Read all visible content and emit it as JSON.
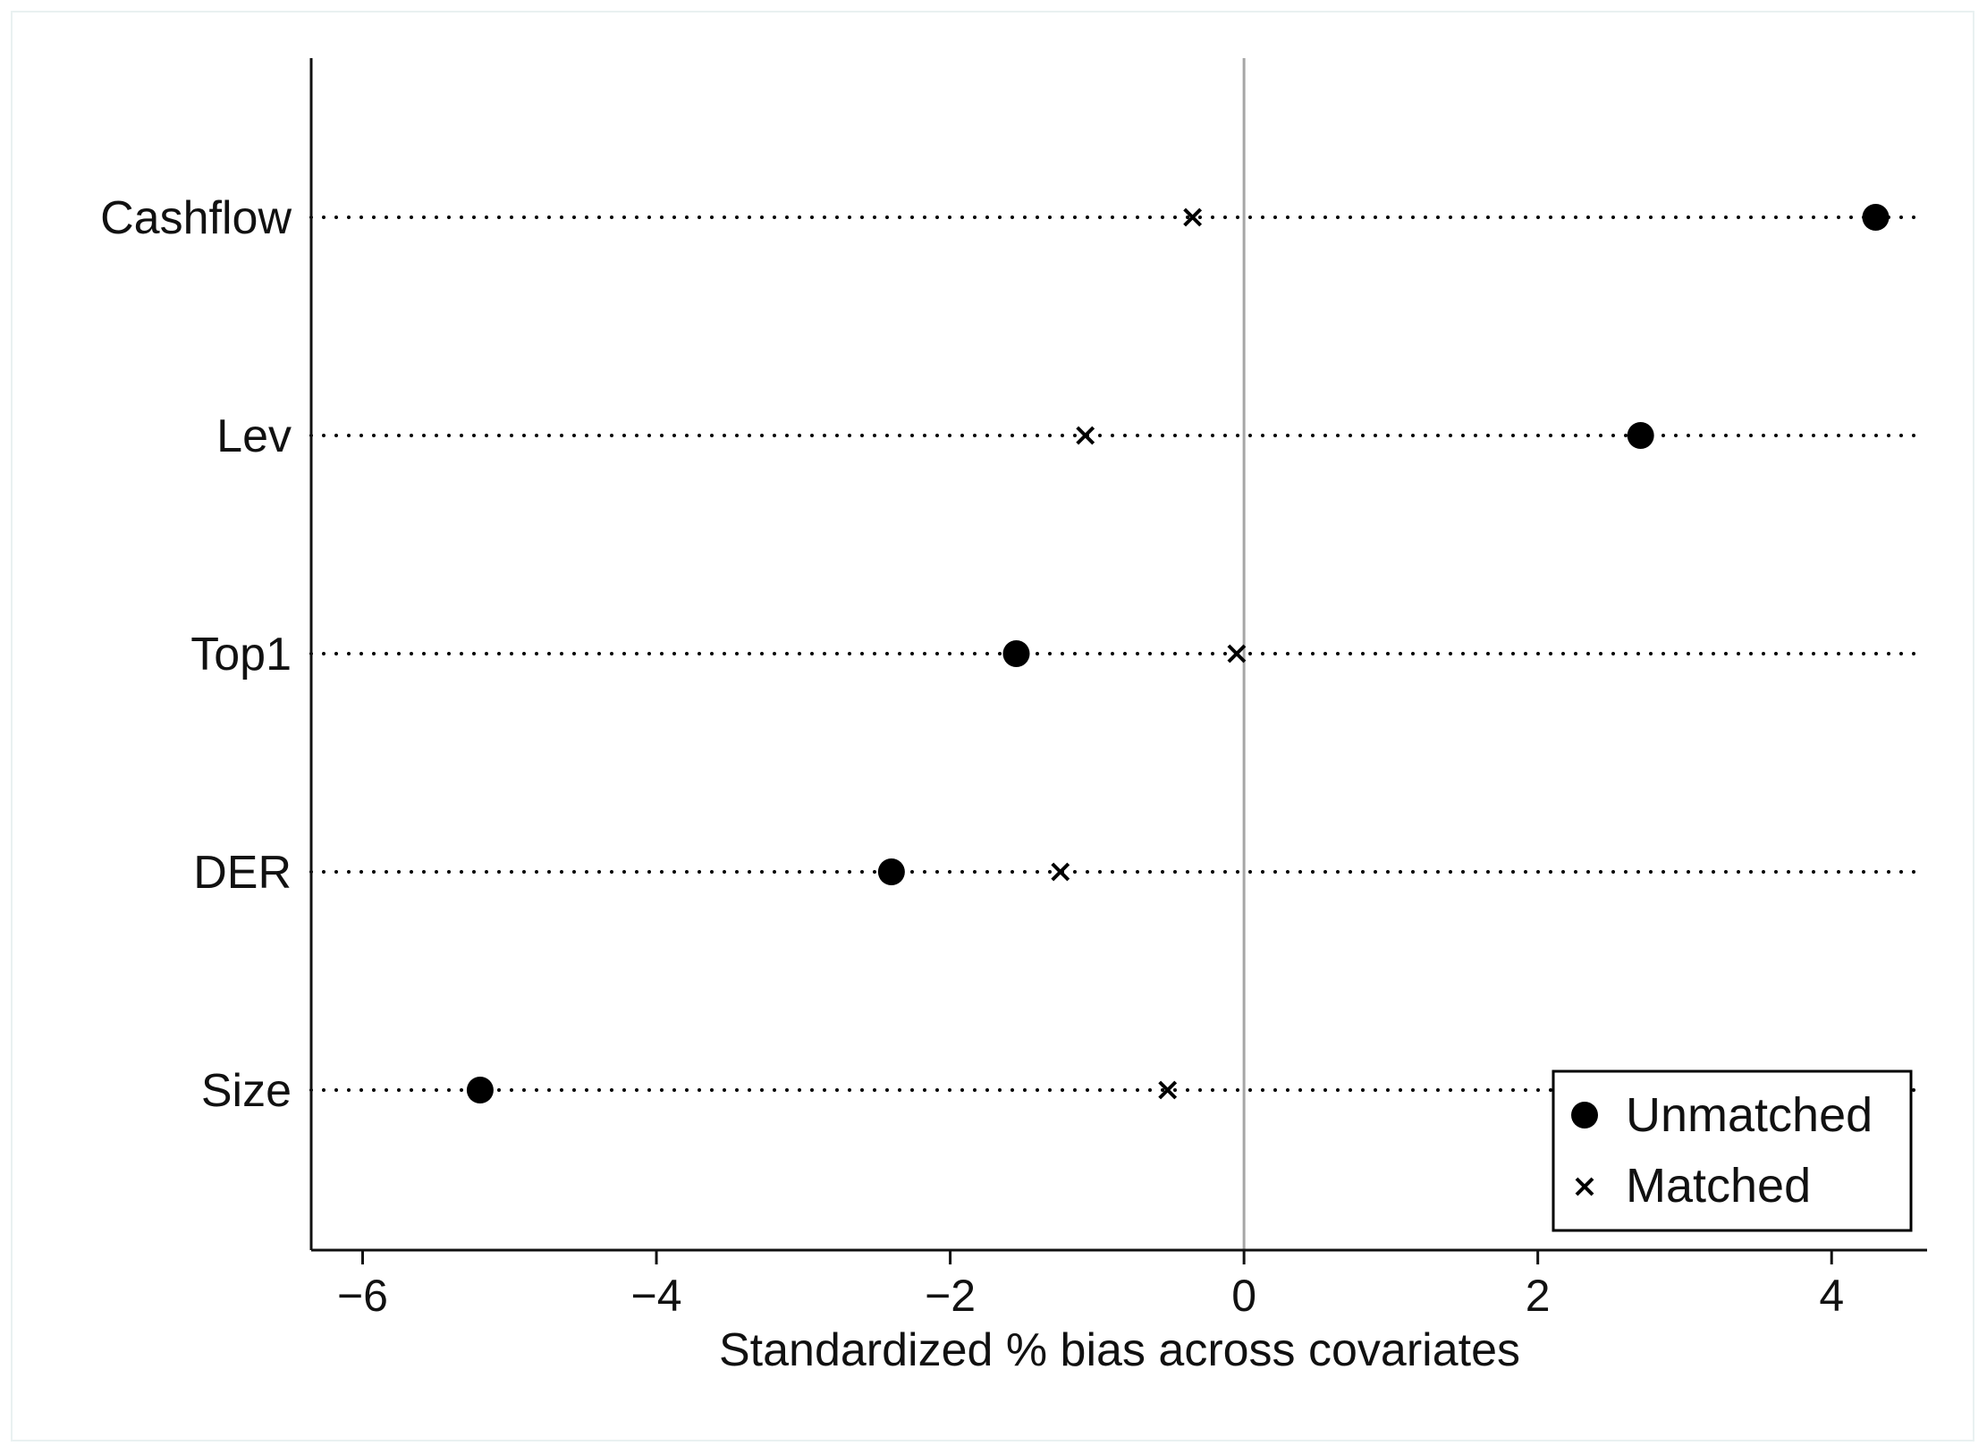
{
  "chart_data": {
    "type": "scatter",
    "xlabel": "Standardized % bias across covariates",
    "ylabel": "",
    "xlim": [
      -6.35,
      4.65
    ],
    "xticks": [
      -6,
      -4,
      -2,
      0,
      2,
      4
    ],
    "xtick_labels": [
      "−6",
      "−4",
      "−2",
      "0",
      "2",
      "4"
    ],
    "categories": [
      "Cashflow",
      "Lev",
      "Top1",
      "DER",
      "Size"
    ],
    "reference_line_x": 0,
    "grid": "dotted horizontal lines at each covariate",
    "legend_position": "bottom-right",
    "series": [
      {
        "name": "Unmatched",
        "marker": "filled-circle",
        "values": [
          4.3,
          2.7,
          -1.55,
          -2.4,
          -5.2
        ]
      },
      {
        "name": "Matched",
        "marker": "x",
        "values": [
          -0.35,
          -1.08,
          -0.05,
          -1.25,
          -0.52
        ]
      }
    ]
  },
  "colors": {
    "marker": "#000000",
    "axis": "#111111",
    "zero_line": "#a6a6a6",
    "frame_border": "#e9f1f1"
  }
}
